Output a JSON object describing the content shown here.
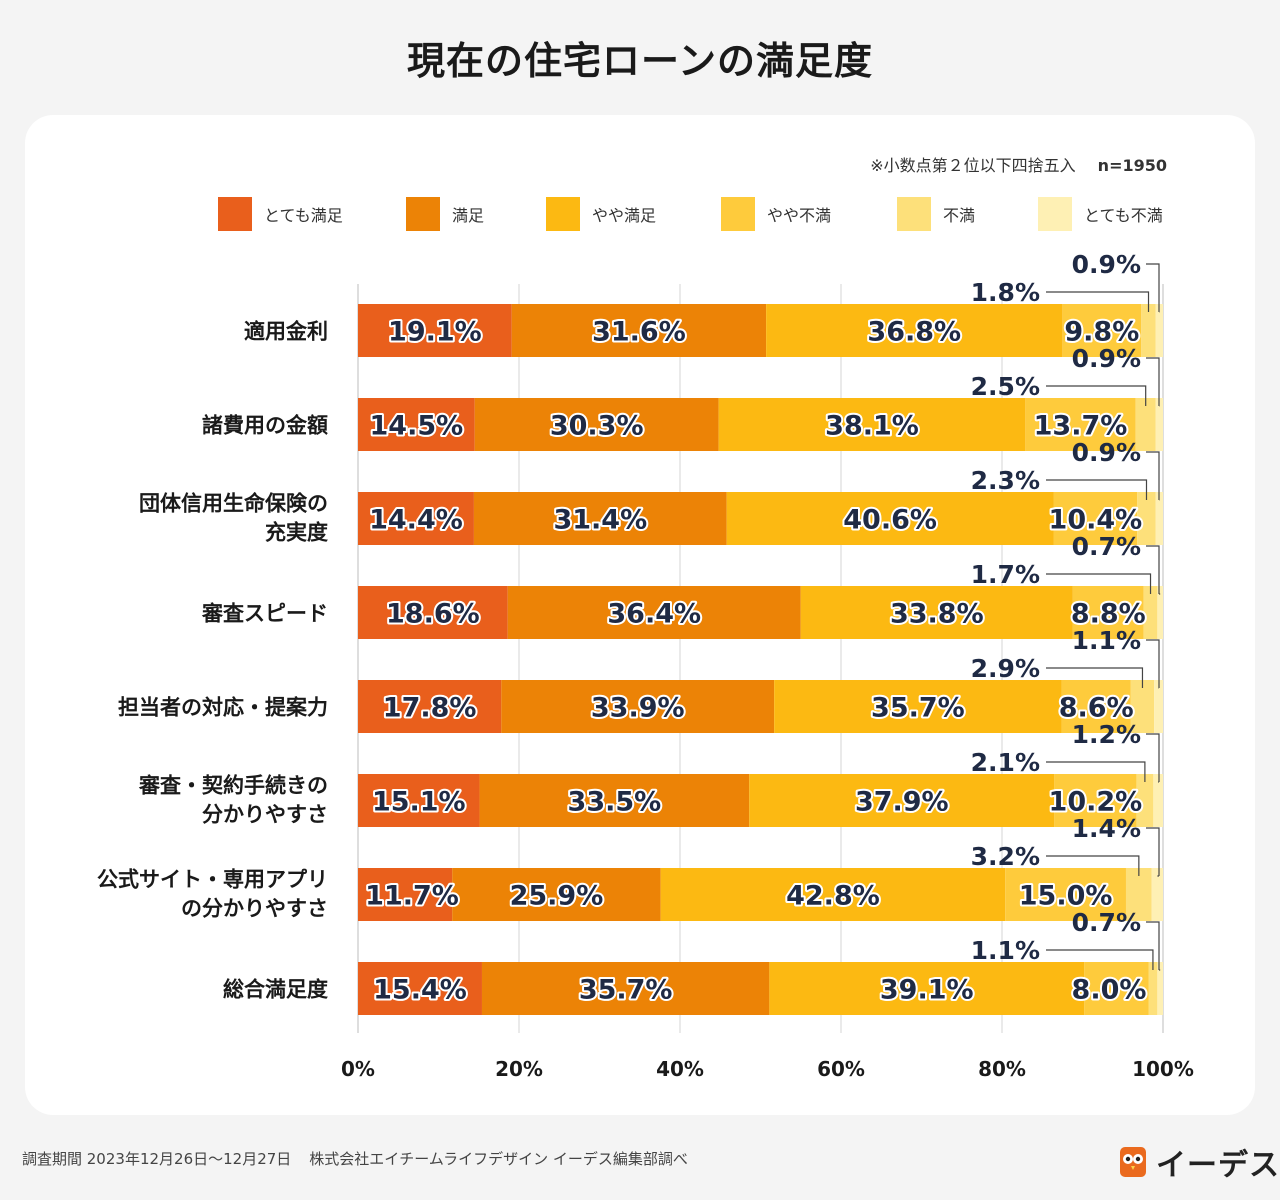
{
  "page": {
    "title": "現在の住宅ローンの満足度",
    "note": "※小数点第２位以下四捨五入",
    "n_label": "n=1950",
    "footer_period": "調査期間 2023年12月26日〜12月27日",
    "footer_org": "株式会社エイチームライフデザイン イーデス編集部調べ",
    "logo_text": "イーデス",
    "logo_icon": "owl-logo-icon"
  },
  "chart_data": {
    "type": "bar",
    "orientation": "horizontal",
    "stacked": true,
    "title": "現在の住宅ローンの満足度",
    "xlim": [
      0,
      100
    ],
    "x_ticks": [
      "0%",
      "20%",
      "40%",
      "60%",
      "80%",
      "100%"
    ],
    "grid": true,
    "legend_position": "top",
    "categories": [
      [
        "適用金利"
      ],
      [
        "諸費用の金額"
      ],
      [
        "団体信用生命保険の",
        "充実度"
      ],
      [
        "審査スピード"
      ],
      [
        "担当者の対応・提案力"
      ],
      [
        "審査・契約手続きの",
        "分かりやすさ"
      ],
      [
        "公式サイト・専用アプリ",
        "の分かりやすさ"
      ],
      [
        "総合満足度"
      ]
    ],
    "series": [
      {
        "name": "とても満足",
        "color": "#e95f1c",
        "values": [
          19.1,
          14.5,
          14.4,
          18.6,
          17.8,
          15.1,
          11.7,
          15.4
        ],
        "labels": [
          "19.1%",
          "14.5%",
          "14.4%",
          "18.6%",
          "17.8%",
          "15.1%",
          "11.7%",
          "15.4%"
        ]
      },
      {
        "name": "満足",
        "color": "#ec8306",
        "values": [
          31.6,
          30.3,
          31.4,
          36.4,
          33.9,
          33.5,
          25.9,
          35.7
        ],
        "labels": [
          "31.6%",
          "30.3%",
          "31.4%",
          "36.4%",
          "33.9%",
          "33.5%",
          "25.9%",
          "35.7%"
        ]
      },
      {
        "name": "やや満足",
        "color": "#fcb912",
        "values": [
          36.8,
          38.1,
          40.6,
          33.8,
          35.7,
          37.9,
          42.8,
          39.1
        ],
        "labels": [
          "36.8%",
          "38.1%",
          "40.6%",
          "33.8%",
          "35.7%",
          "37.9%",
          "42.8%",
          "39.1%"
        ]
      },
      {
        "name": "やや不満",
        "color": "#fecb3c",
        "values": [
          9.8,
          13.7,
          10.4,
          8.8,
          8.6,
          10.2,
          15.0,
          8.0
        ],
        "labels": [
          "9.8%",
          "13.7%",
          "10.4%",
          "8.8%",
          "8.6%",
          "10.2%",
          "15.0%",
          "8.0%"
        ]
      },
      {
        "name": "不満",
        "color": "#fde07a",
        "values": [
          1.8,
          2.5,
          2.3,
          1.7,
          2.9,
          2.1,
          3.2,
          1.1
        ],
        "labels": [
          "1.8%",
          "2.5%",
          "2.3%",
          "1.7%",
          "2.9%",
          "2.1%",
          "3.2%",
          "1.1%"
        ]
      },
      {
        "name": "とても不満",
        "color": "#fef0b4",
        "values": [
          0.9,
          0.9,
          0.9,
          0.7,
          1.1,
          1.2,
          1.4,
          0.7
        ],
        "labels": [
          "0.9%",
          "0.9%",
          "0.9%",
          "0.7%",
          "1.1%",
          "1.2%",
          "1.4%",
          "0.7%"
        ]
      }
    ]
  }
}
